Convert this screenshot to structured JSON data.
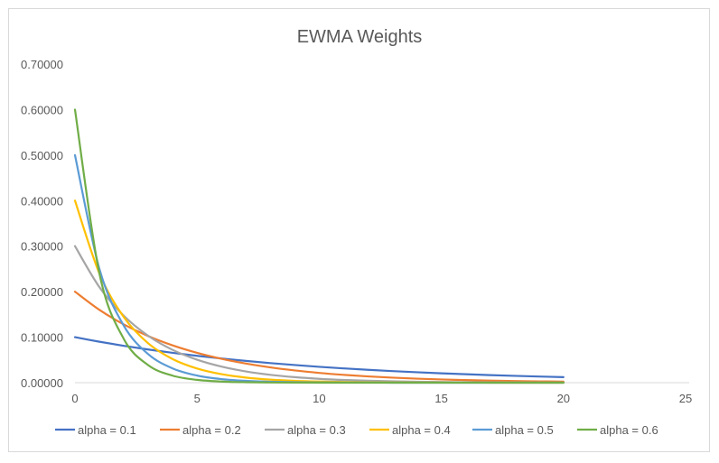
{
  "chart_data": {
    "type": "line",
    "title": "EWMA Weights",
    "xlabel": "",
    "ylabel": "",
    "xlim": [
      0,
      25
    ],
    "ylim": [
      0,
      0.7
    ],
    "x_ticks": [
      "0",
      "5",
      "10",
      "15",
      "20",
      "25"
    ],
    "y_ticks": [
      "0.00000",
      "0.10000",
      "0.20000",
      "0.30000",
      "0.40000",
      "0.50000",
      "0.60000",
      "0.70000"
    ],
    "grid": false,
    "smoothed": true,
    "legend_position": "bottom",
    "x": [
      0,
      1,
      2,
      3,
      4,
      5,
      6,
      7,
      8,
      9,
      10,
      11,
      12,
      13,
      14,
      15,
      16,
      17,
      18,
      19,
      20
    ],
    "series": [
      {
        "name": "alpha = 0.1",
        "color": "#4472C4",
        "values": [
          0.1,
          0.09,
          0.081,
          0.0729,
          0.06561,
          0.05905,
          0.05314,
          0.04783,
          0.04305,
          0.03874,
          0.03487,
          0.03138,
          0.02824,
          0.02542,
          0.02288,
          0.02059,
          0.01853,
          0.01668,
          0.01501,
          0.01351,
          0.01216
        ]
      },
      {
        "name": "alpha = 0.2",
        "color": "#ED7D31",
        "values": [
          0.2,
          0.16,
          0.128,
          0.1024,
          0.08192,
          0.06554,
          0.05243,
          0.04194,
          0.03355,
          0.02684,
          0.02147,
          0.01718,
          0.01374,
          0.011,
          0.0088,
          0.00704,
          0.00563,
          0.0045,
          0.0036,
          0.00288,
          0.00231
        ]
      },
      {
        "name": "alpha = 0.3",
        "color": "#A5A5A5",
        "values": [
          0.3,
          0.21,
          0.147,
          0.1029,
          0.07203,
          0.05042,
          0.03529,
          0.02471,
          0.01729,
          0.01211,
          0.00847,
          0.00593,
          0.00415,
          0.00291,
          0.00203,
          0.00142,
          0.001,
          0.0007,
          0.00049,
          0.00034,
          0.00024
        ]
      },
      {
        "name": "alpha = 0.4",
        "color": "#FFC000",
        "values": [
          0.4,
          0.24,
          0.144,
          0.0864,
          0.05184,
          0.0311,
          0.01866,
          0.0112,
          0.00672,
          0.00403,
          0.00242,
          0.00145,
          0.00087,
          0.00052,
          0.00031,
          0.00019,
          0.00011,
          7e-05,
          4e-05,
          2e-05,
          1e-05
        ]
      },
      {
        "name": "alpha = 0.5",
        "color": "#5B9BD5",
        "values": [
          0.5,
          0.25,
          0.125,
          0.0625,
          0.03125,
          0.01563,
          0.00781,
          0.00391,
          0.00195,
          0.00098,
          0.00049,
          0.00024,
          0.00012,
          6e-05,
          3e-05,
          2e-05,
          1e-05,
          0,
          0,
          0,
          0
        ]
      },
      {
        "name": "alpha = 0.6",
        "color": "#70AD47",
        "values": [
          0.6,
          0.24,
          0.096,
          0.0384,
          0.01536,
          0.00614,
          0.00246,
          0.00098,
          0.00039,
          0.00016,
          6e-05,
          3e-05,
          1e-05,
          0,
          0,
          0,
          0,
          0,
          0,
          0,
          0
        ]
      }
    ]
  }
}
